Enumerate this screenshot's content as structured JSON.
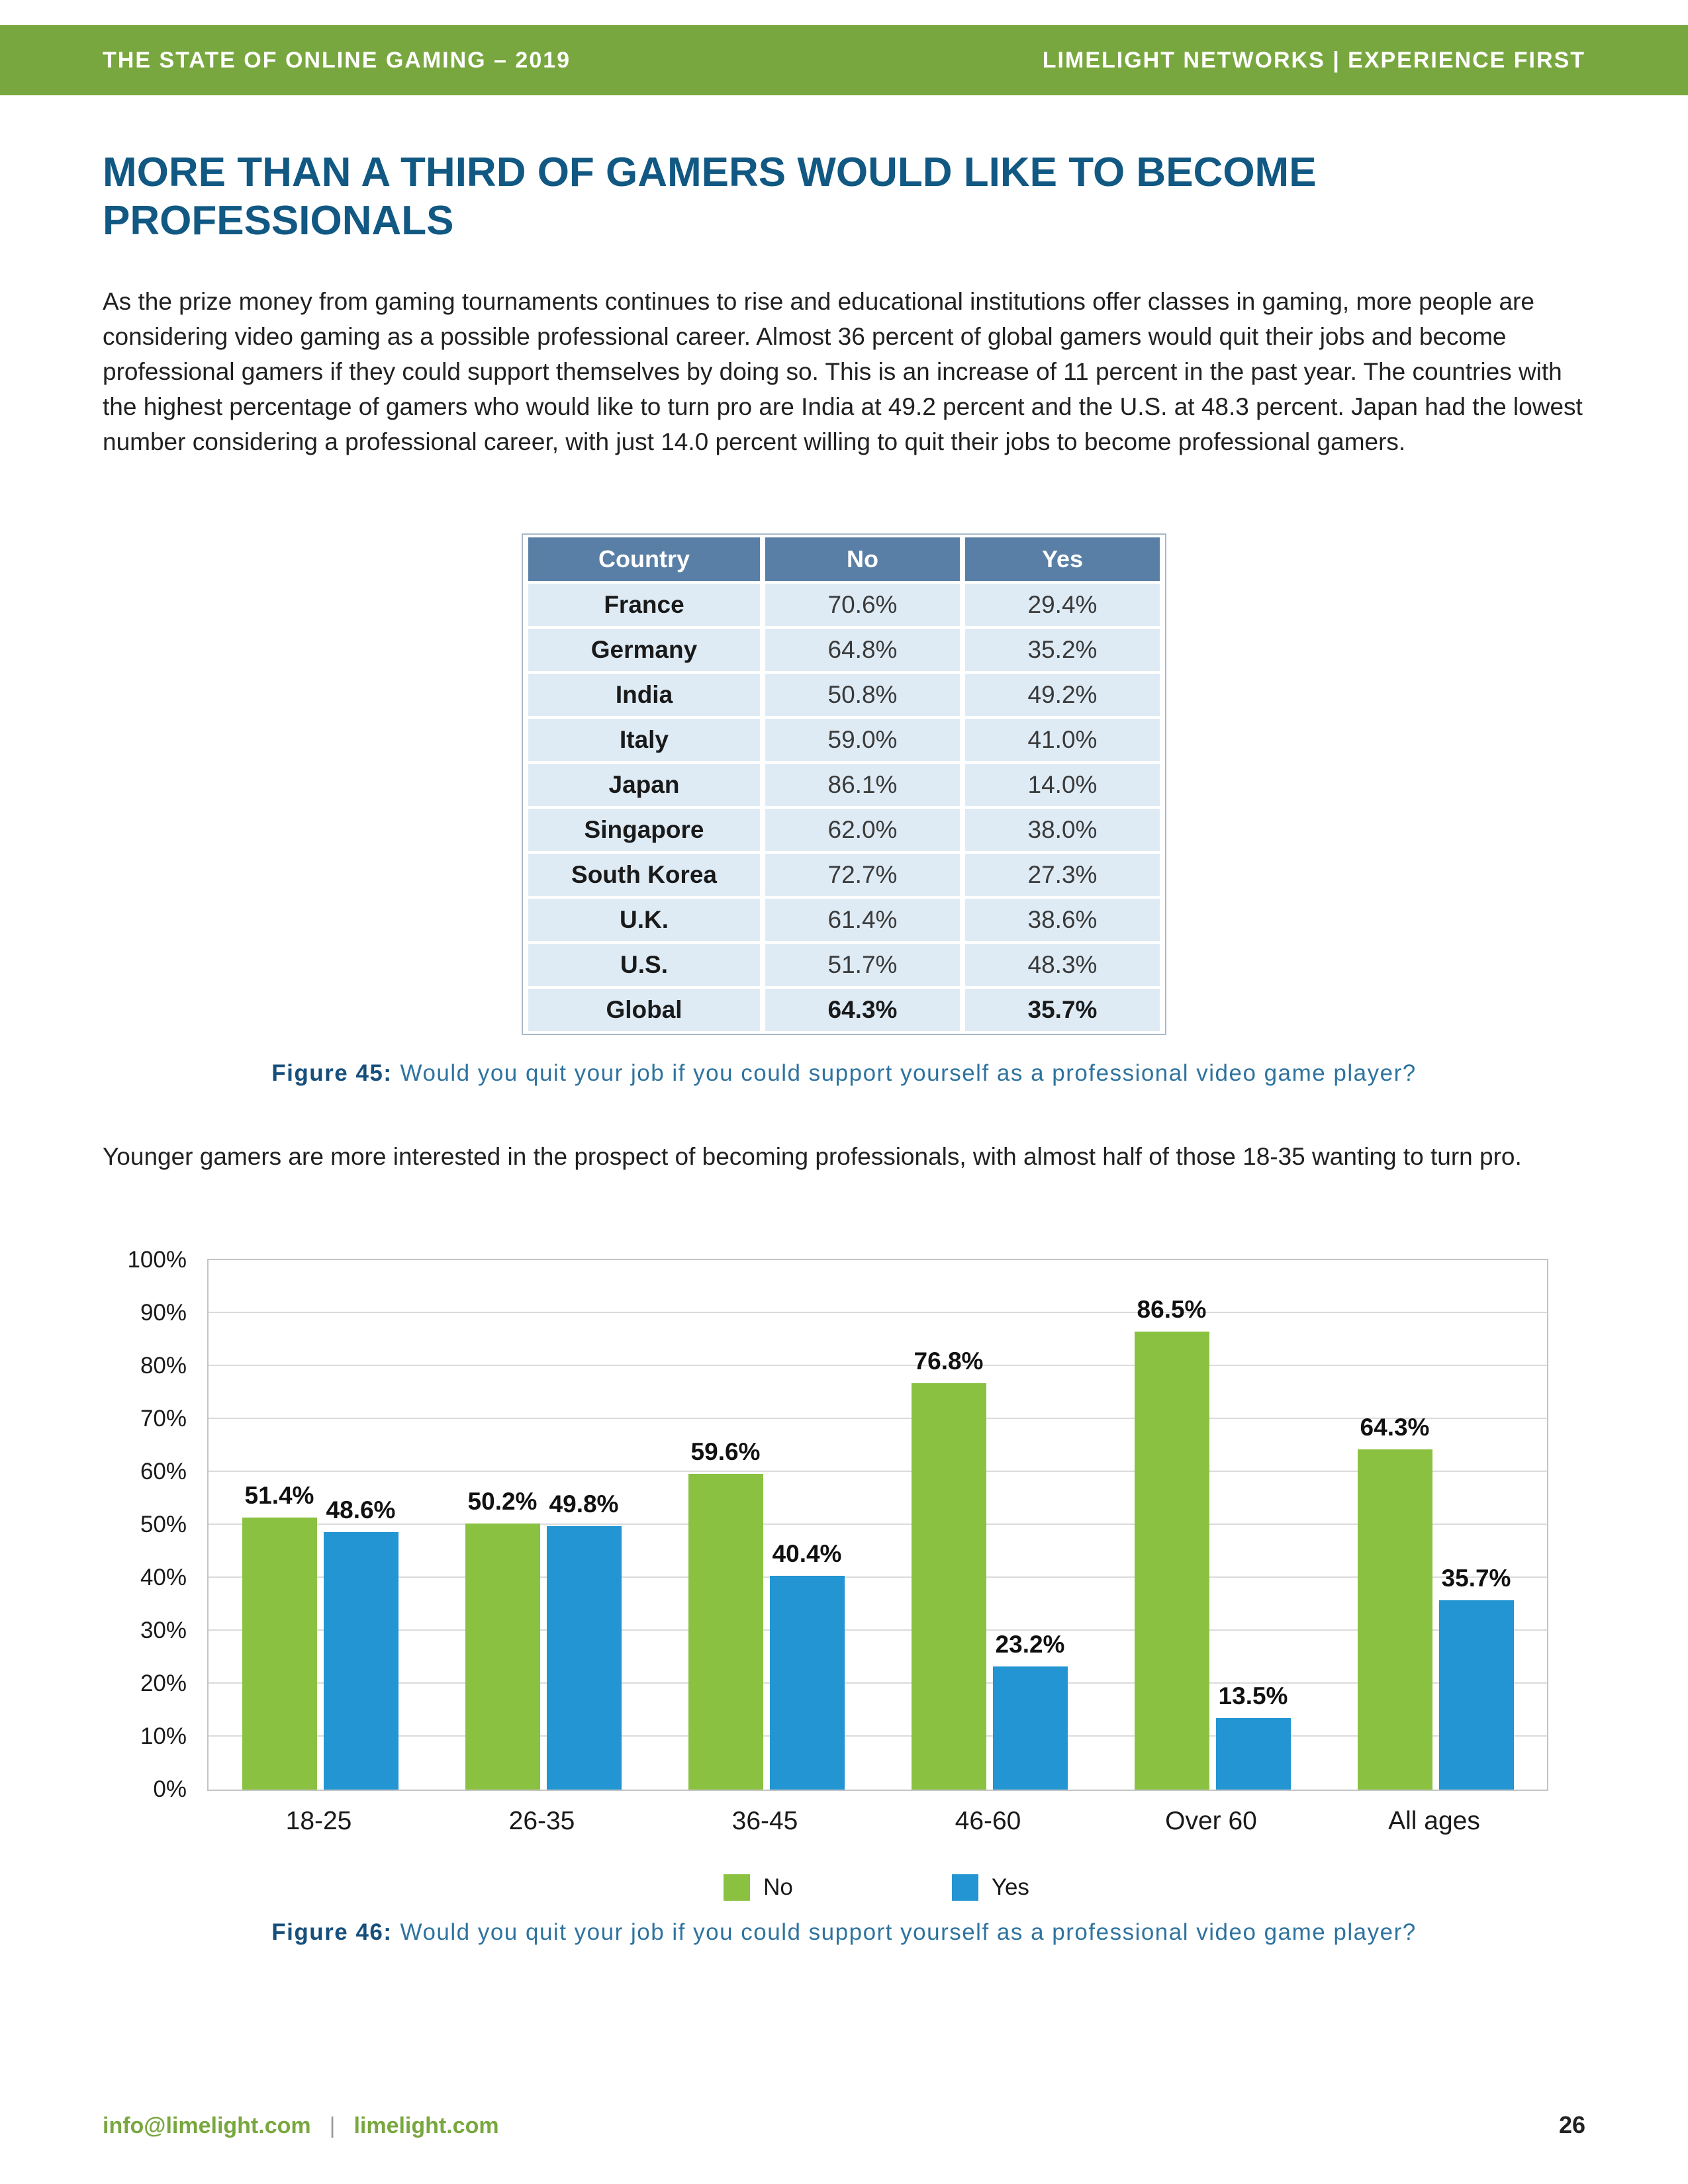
{
  "page": {
    "header": {
      "left": "THE STATE OF ONLINE GAMING – 2019",
      "right": "LIMELIGHT NETWORKS | EXPERIENCE FIRST"
    },
    "title": "MORE THAN A THIRD OF GAMERS WOULD LIKE TO BECOME PROFESSIONALS",
    "intro_paragraph": "As the prize money from gaming tournaments continues to rise and educational institutions offer classes in gaming, more people are considering video gaming as a possible professional career. Almost 36 percent of global gamers would quit their jobs and become professional gamers if they could support themselves by doing so. This is an increase of 11 percent in the past year. The countries with the highest percentage of gamers who would like to turn pro are India at 49.2 percent and the U.S. at 48.3 percent. Japan had the lowest number considering a professional career, with just 14.0 percent willing to quit their jobs to become professional gamers.",
    "table": {
      "columns": [
        "Country",
        "No",
        "Yes"
      ],
      "rows": [
        {
          "country": "France",
          "no": "70.6%",
          "yes": "29.4%",
          "bold": false
        },
        {
          "country": "Germany",
          "no": "64.8%",
          "yes": "35.2%",
          "bold": false
        },
        {
          "country": "India",
          "no": "50.8%",
          "yes": "49.2%",
          "bold": false
        },
        {
          "country": "Italy",
          "no": "59.0%",
          "yes": "41.0%",
          "bold": false
        },
        {
          "country": "Japan",
          "no": "86.1%",
          "yes": "14.0%",
          "bold": false
        },
        {
          "country": "Singapore",
          "no": "62.0%",
          "yes": "38.0%",
          "bold": false
        },
        {
          "country": "South Korea",
          "no": "72.7%",
          "yes": "27.3%",
          "bold": false
        },
        {
          "country": "U.K.",
          "no": "61.4%",
          "yes": "38.6%",
          "bold": false
        },
        {
          "country": "U.S.",
          "no": "51.7%",
          "yes": "48.3%",
          "bold": false
        },
        {
          "country": "Global",
          "no": "64.3%",
          "yes": "35.7%",
          "bold": true
        }
      ]
    },
    "figure45": {
      "prefix": "Figure 45:",
      "text": "Would you quit your job if you could support yourself as a professional video game player?"
    },
    "second_paragraph": "Younger gamers are more interested in the prospect of becoming professionals, with almost half of those 18-35 wanting to turn pro.",
    "figure46": {
      "prefix": "Figure 46:",
      "text": "Would you quit your job if you could support yourself as a professional video game player?"
    },
    "footer": {
      "email": "info@limelight.com",
      "separator": "|",
      "website": "limelight.com",
      "page_number": "26"
    }
  },
  "chart_data": {
    "type": "bar",
    "title": "",
    "xlabel": "",
    "ylabel": "",
    "categories": [
      "18-25",
      "26-35",
      "36-45",
      "46-60",
      "Over 60",
      "All ages"
    ],
    "series": [
      {
        "name": "No",
        "color": "#8BC140",
        "values": [
          51.4,
          50.2,
          59.6,
          76.8,
          86.5,
          64.3
        ]
      },
      {
        "name": "Yes",
        "color": "#2295D2",
        "values": [
          48.6,
          49.8,
          40.4,
          23.2,
          13.5,
          35.7
        ]
      }
    ],
    "ylim": [
      0,
      100
    ],
    "ytick_interval": 10,
    "ytick_labels": [
      "0%",
      "10%",
      "20%",
      "30%",
      "40%",
      "50%",
      "60%",
      "70%",
      "80%",
      "90%",
      "100%"
    ],
    "grid": true,
    "legend_position": "bottom",
    "value_labels": true
  },
  "colors": {
    "header_green": "#79A73F",
    "title_blue": "#115883",
    "table_header_blue": "#5A7FA6",
    "table_row_blue": "#DEEBF5",
    "caption_blue": "#2E739F",
    "bar_no_green": "#8BC140",
    "bar_yes_blue": "#2295D2"
  }
}
